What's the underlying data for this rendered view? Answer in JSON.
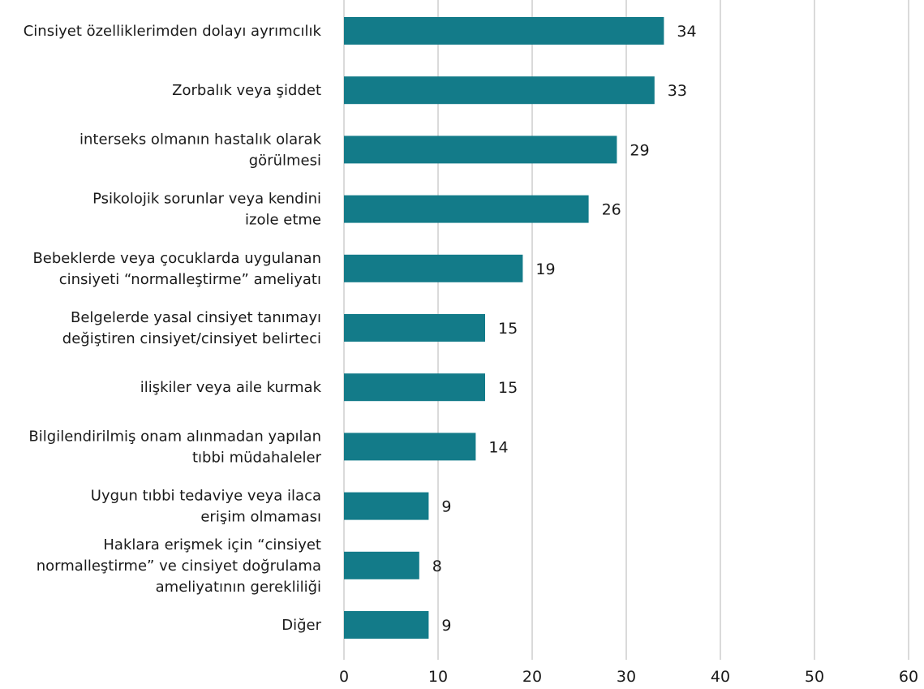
{
  "chart_data": {
    "type": "bar",
    "orientation": "horizontal",
    "categories": [
      [
        "Cinsiyet özelliklerimden dolayı ayrımcılık"
      ],
      [
        "Zorbalık veya şiddet"
      ],
      [
        "interseks olmanın hastalık olarak",
        "görülmesi"
      ],
      [
        "Psikolojik sorunlar veya kendini",
        "izole etme"
      ],
      [
        "Bebeklerde veya çocuklarda uygulanan",
        "cinsiyeti “normalleştirme” ameliyatı"
      ],
      [
        "Belgelerde yasal cinsiyet tanımayı",
        "değiştiren cinsiyet/cinsiyet belirteci"
      ],
      [
        "ilişkiler veya aile kurmak"
      ],
      [
        "Bilgilendirilmiş onam alınmadan yapılan",
        "tıbbi müdahaleler"
      ],
      [
        "Uygun tıbbi tedaviye veya ilaca",
        "erişim olmaması"
      ],
      [
        "Haklara erişmek için “cinsiyet",
        "normalleştirme” ve cinsiyet doğrulama",
        "ameliyatının gerekliliği"
      ],
      [
        "Diğer"
      ]
    ],
    "values": [
      34,
      33,
      29,
      26,
      19,
      15,
      15,
      14,
      9,
      8,
      9
    ],
    "xlim": [
      0,
      60
    ],
    "xticks": [
      0,
      10,
      20,
      30,
      40,
      50,
      60
    ],
    "grid": "vertical",
    "bar_color": "#137b89",
    "title": "",
    "xlabel": "",
    "ylabel": ""
  }
}
